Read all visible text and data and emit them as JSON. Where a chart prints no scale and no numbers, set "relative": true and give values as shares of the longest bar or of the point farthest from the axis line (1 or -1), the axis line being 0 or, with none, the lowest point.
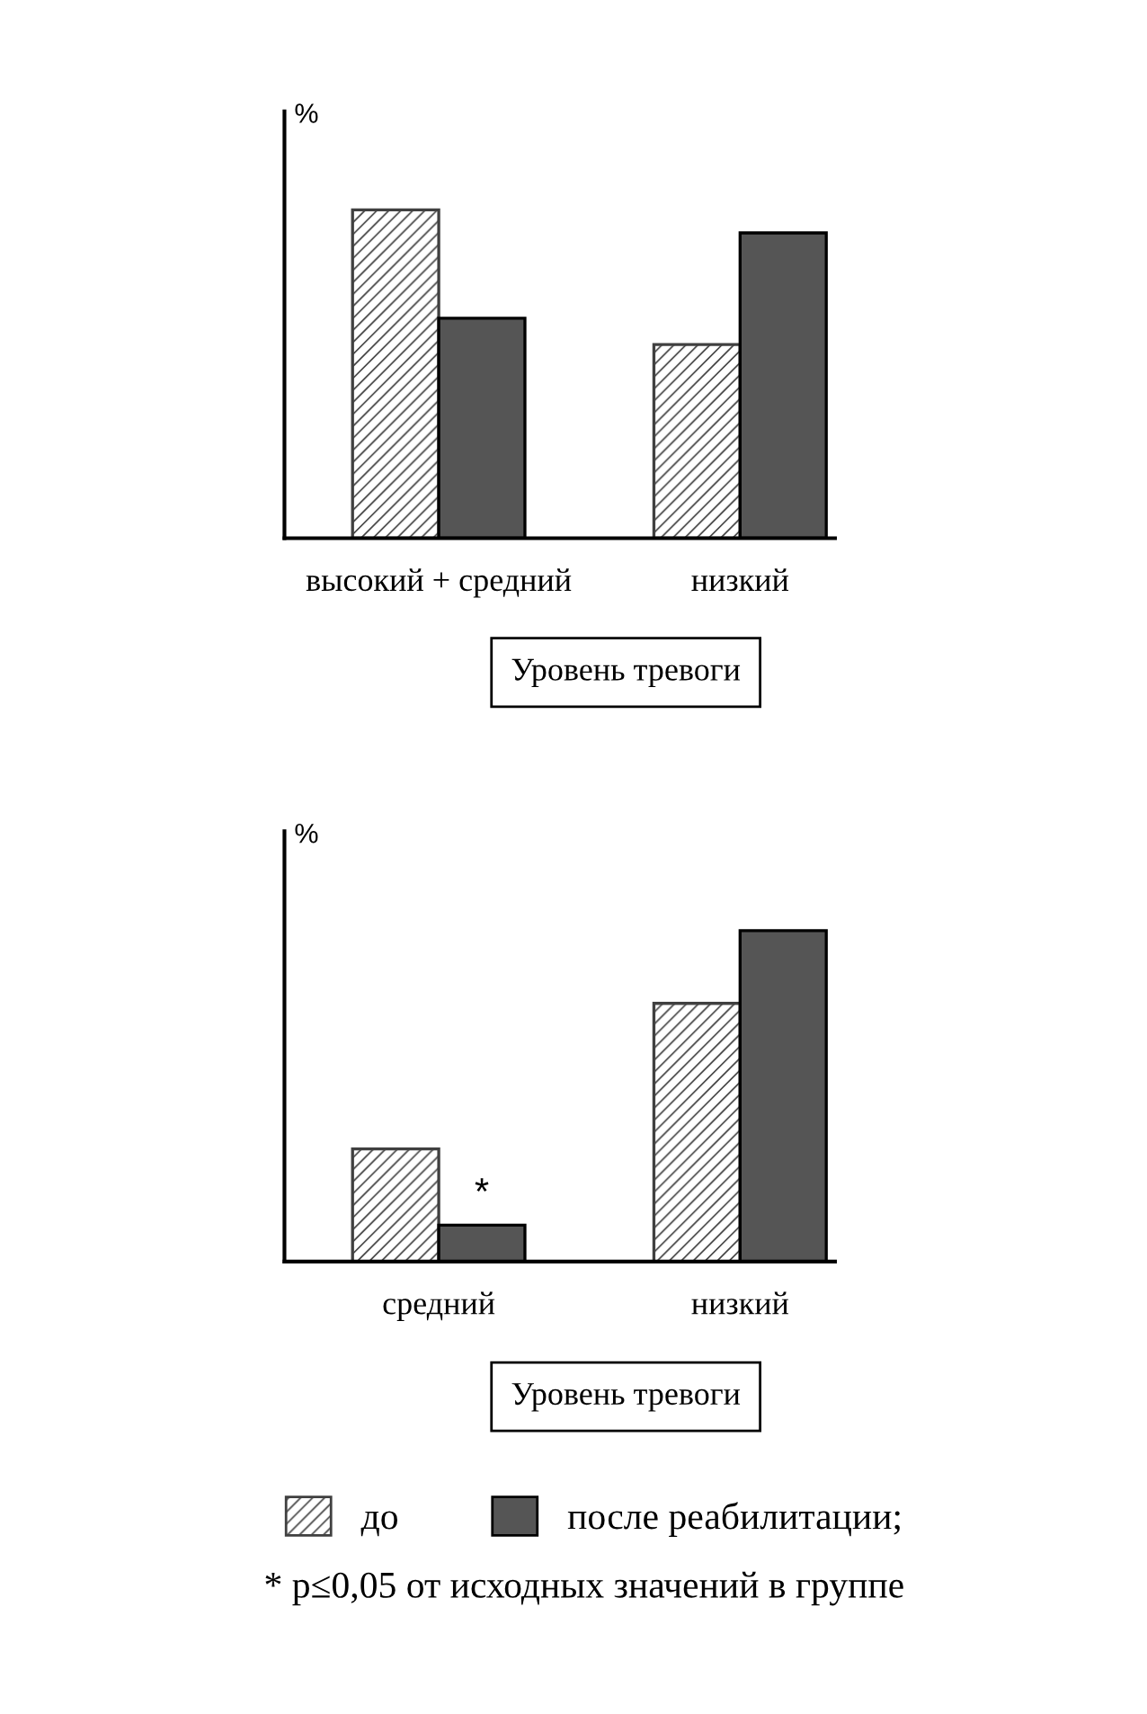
{
  "chart_data": [
    {
      "type": "bar",
      "relative": true,
      "ylabel": "%",
      "xlabel": "Уровень тревоги",
      "categories": [
        "высокий + средний",
        "низкий"
      ],
      "series": [
        {
          "color": "#404040",
          "values": [
            1,
            0.59
          ]
        },
        {
          "color": "#555555",
          "values": [
            0.67,
            0.93
          ]
        }
      ]
    },
    {
      "type": "bar",
      "relative": true,
      "ylabel": "%",
      "xlabel": "Уровень тревоги",
      "categories": [
        "средний",
        "низкий"
      ],
      "legend": "bottom",
      "series": [
        {
          "name": "до",
          "color": "#404040",
          "values": [
            0.34,
            0.78
          ]
        },
        {
          "name": "после реабилитации;",
          "color": "#555555",
          "values": [
            0.11,
            1
          ]
        }
      ],
      "annotations": [
        {
          "text": "*",
          "x": "средний",
          "y": 0.11
        },
        "* p≤0,05 от исходных значений в группе"
      ]
    }
  ]
}
